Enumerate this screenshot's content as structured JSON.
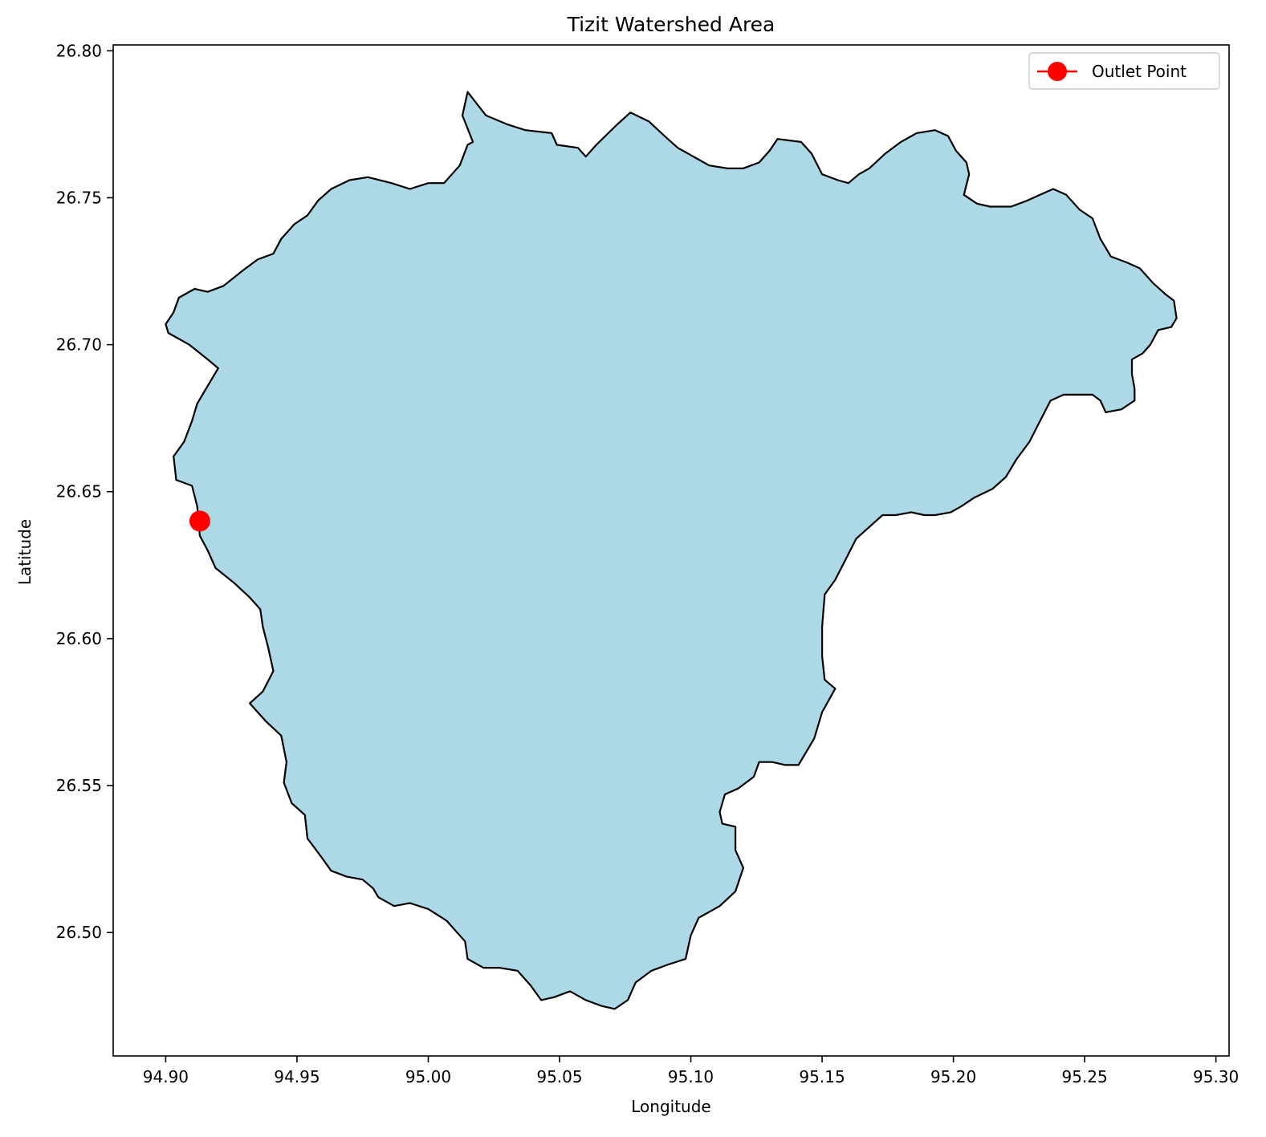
{
  "chart_data": {
    "type": "map",
    "title": "Tizit Watershed Area",
    "xlabel": "Longitude",
    "ylabel": "Latitude",
    "xlim": [
      94.88,
      95.305
    ],
    "ylim": [
      26.458,
      26.802
    ],
    "xticks": [
      94.9,
      94.95,
      95.0,
      95.05,
      95.1,
      95.15,
      95.2,
      95.25,
      95.3
    ],
    "xtick_labels": [
      "94.90",
      "94.95",
      "95.00",
      "95.05",
      "95.10",
      "95.15",
      "95.20",
      "95.25",
      "95.30"
    ],
    "yticks": [
      26.5,
      26.55,
      26.6,
      26.65,
      26.7,
      26.75,
      26.8
    ],
    "ytick_labels": [
      "26.50",
      "26.55",
      "26.60",
      "26.65",
      "26.70",
      "26.75",
      "26.80"
    ],
    "grid": false,
    "legend": {
      "placement": "top-right",
      "entries": [
        {
          "label": "Outlet Point",
          "color": "#ff0000",
          "marker": "circle"
        }
      ]
    },
    "watershed": {
      "fill": "#add8e6",
      "edge": "#000000",
      "boundary": [
        [
          95.015,
          26.786
        ],
        [
          95.022,
          26.778
        ],
        [
          95.03,
          26.775
        ],
        [
          95.037,
          26.773
        ],
        [
          95.047,
          26.772
        ],
        [
          95.049,
          26.768
        ],
        [
          95.057,
          26.767
        ],
        [
          95.06,
          26.764
        ],
        [
          95.064,
          26.768
        ],
        [
          95.072,
          26.775
        ],
        [
          95.077,
          26.779
        ],
        [
          95.084,
          26.776
        ],
        [
          95.09,
          26.771
        ],
        [
          95.095,
          26.767
        ],
        [
          95.101,
          26.764
        ],
        [
          95.107,
          26.761
        ],
        [
          95.114,
          26.76
        ],
        [
          95.12,
          26.76
        ],
        [
          95.126,
          26.762
        ],
        [
          95.13,
          26.766
        ],
        [
          95.133,
          26.77
        ],
        [
          95.142,
          26.769
        ],
        [
          95.146,
          26.765
        ],
        [
          95.15,
          26.758
        ],
        [
          95.156,
          26.756
        ],
        [
          95.16,
          26.755
        ],
        [
          95.164,
          26.758
        ],
        [
          95.168,
          26.76
        ],
        [
          95.174,
          26.765
        ],
        [
          95.18,
          26.769
        ],
        [
          95.186,
          26.772
        ],
        [
          95.193,
          26.773
        ],
        [
          95.198,
          26.771
        ],
        [
          95.201,
          26.766
        ],
        [
          95.205,
          26.762
        ],
        [
          95.206,
          26.758
        ],
        [
          95.204,
          26.751
        ],
        [
          95.209,
          26.748
        ],
        [
          95.214,
          26.747
        ],
        [
          95.222,
          26.747
        ],
        [
          95.228,
          26.749
        ],
        [
          95.233,
          26.751
        ],
        [
          95.238,
          26.753
        ],
        [
          95.243,
          26.751
        ],
        [
          95.248,
          26.746
        ],
        [
          95.253,
          26.743
        ],
        [
          95.256,
          26.736
        ],
        [
          95.26,
          26.73
        ],
        [
          95.266,
          26.728
        ],
        [
          95.271,
          26.726
        ],
        [
          95.276,
          26.721
        ],
        [
          95.281,
          26.717
        ],
        [
          95.284,
          26.715
        ],
        [
          95.285,
          26.709
        ],
        [
          95.283,
          26.706
        ],
        [
          95.278,
          26.705
        ],
        [
          95.275,
          26.7
        ],
        [
          95.272,
          26.697
        ],
        [
          95.268,
          26.695
        ],
        [
          95.268,
          26.69
        ],
        [
          95.269,
          26.685
        ],
        [
          95.269,
          26.681
        ],
        [
          95.264,
          26.678
        ],
        [
          95.258,
          26.677
        ],
        [
          95.256,
          26.681
        ],
        [
          95.253,
          26.683
        ],
        [
          95.247,
          26.683
        ],
        [
          95.242,
          26.683
        ],
        [
          95.237,
          26.681
        ],
        [
          95.233,
          26.674
        ],
        [
          95.229,
          26.667
        ],
        [
          95.224,
          26.661
        ],
        [
          95.22,
          26.655
        ],
        [
          95.215,
          26.651
        ],
        [
          95.208,
          26.648
        ],
        [
          95.203,
          26.645
        ],
        [
          95.199,
          26.643
        ],
        [
          95.193,
          26.642
        ],
        [
          95.189,
          26.642
        ],
        [
          95.184,
          26.643
        ],
        [
          95.178,
          26.642
        ],
        [
          95.173,
          26.642
        ],
        [
          95.168,
          26.638
        ],
        [
          95.163,
          26.634
        ],
        [
          95.159,
          26.627
        ],
        [
          95.155,
          26.62
        ],
        [
          95.151,
          26.615
        ],
        [
          95.15,
          26.604
        ],
        [
          95.15,
          26.594
        ],
        [
          95.151,
          26.586
        ],
        [
          95.155,
          26.583
        ],
        [
          95.15,
          26.575
        ],
        [
          95.147,
          26.566
        ],
        [
          95.141,
          26.557
        ],
        [
          95.136,
          26.557
        ],
        [
          95.131,
          26.558
        ],
        [
          95.126,
          26.558
        ],
        [
          95.124,
          26.553
        ],
        [
          95.118,
          26.549
        ],
        [
          95.113,
          26.547
        ],
        [
          95.111,
          26.541
        ],
        [
          95.112,
          26.537
        ],
        [
          95.117,
          26.536
        ],
        [
          95.117,
          26.528
        ],
        [
          95.12,
          26.522
        ],
        [
          95.117,
          26.514
        ],
        [
          95.111,
          26.509
        ],
        [
          95.103,
          26.505
        ],
        [
          95.1,
          26.499
        ],
        [
          95.098,
          26.491
        ],
        [
          95.091,
          26.489
        ],
        [
          95.085,
          26.487
        ],
        [
          95.079,
          26.483
        ],
        [
          95.076,
          26.477
        ],
        [
          95.071,
          26.474
        ],
        [
          95.066,
          26.475
        ],
        [
          95.06,
          26.477
        ],
        [
          95.054,
          26.48
        ],
        [
          95.048,
          26.478
        ],
        [
          95.043,
          26.477
        ],
        [
          95.039,
          26.482
        ],
        [
          95.034,
          26.487
        ],
        [
          95.027,
          26.488
        ],
        [
          95.021,
          26.488
        ],
        [
          95.015,
          26.491
        ],
        [
          95.014,
          26.497
        ],
        [
          95.011,
          26.5
        ],
        [
          95.007,
          26.504
        ],
        [
          95.0,
          26.508
        ],
        [
          94.993,
          26.51
        ],
        [
          94.987,
          26.509
        ],
        [
          94.981,
          26.512
        ],
        [
          94.979,
          26.515
        ],
        [
          94.975,
          26.518
        ],
        [
          94.969,
          26.519
        ],
        [
          94.963,
          26.521
        ],
        [
          94.959,
          26.526
        ],
        [
          94.954,
          26.532
        ],
        [
          94.953,
          26.54
        ],
        [
          94.948,
          26.544
        ],
        [
          94.945,
          26.551
        ],
        [
          94.946,
          26.558
        ],
        [
          94.944,
          26.567
        ],
        [
          94.938,
          26.572
        ],
        [
          94.932,
          26.578
        ],
        [
          94.937,
          26.582
        ],
        [
          94.941,
          26.589
        ],
        [
          94.939,
          26.597
        ],
        [
          94.937,
          26.604
        ],
        [
          94.936,
          26.61
        ],
        [
          94.932,
          26.614
        ],
        [
          94.926,
          26.619
        ],
        [
          94.919,
          26.624
        ],
        [
          94.916,
          26.63
        ],
        [
          94.913,
          26.635
        ],
        [
          94.912,
          26.645
        ],
        [
          94.91,
          26.652
        ],
        [
          94.904,
          26.654
        ],
        [
          94.903,
          26.662
        ],
        [
          94.907,
          26.667
        ],
        [
          94.91,
          26.674
        ],
        [
          94.912,
          26.68
        ],
        [
          94.916,
          26.686
        ],
        [
          94.92,
          26.692
        ],
        [
          94.916,
          26.695
        ],
        [
          94.909,
          26.7
        ],
        [
          94.901,
          26.704
        ],
        [
          94.9,
          26.707
        ],
        [
          94.903,
          26.711
        ],
        [
          94.905,
          26.716
        ],
        [
          94.911,
          26.719
        ],
        [
          94.916,
          26.718
        ],
        [
          94.922,
          26.72
        ],
        [
          94.929,
          26.725
        ],
        [
          94.935,
          26.729
        ],
        [
          94.941,
          26.731
        ],
        [
          94.944,
          26.736
        ],
        [
          94.949,
          26.741
        ],
        [
          94.954,
          26.744
        ],
        [
          94.958,
          26.749
        ],
        [
          94.963,
          26.753
        ],
        [
          94.97,
          26.756
        ],
        [
          94.977,
          26.757
        ],
        [
          94.986,
          26.755
        ],
        [
          94.993,
          26.753
        ],
        [
          95.0,
          26.755
        ],
        [
          95.006,
          26.755
        ],
        [
          95.012,
          26.761
        ],
        [
          95.015,
          26.768
        ],
        [
          95.017,
          26.769
        ],
        [
          95.013,
          26.778
        ],
        [
          95.015,
          26.786
        ]
      ]
    },
    "outlet_point": {
      "lon": 94.913,
      "lat": 26.64,
      "color": "#ff0000",
      "label": "Outlet Point"
    }
  }
}
